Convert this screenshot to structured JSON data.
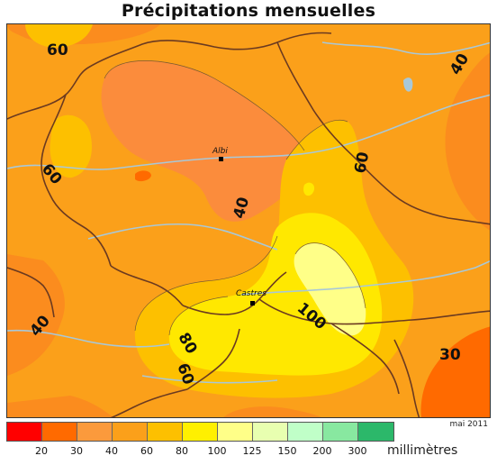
{
  "title": "Précipitations mensuelles",
  "date": "mai 2011",
  "unit": "millimètres",
  "legend": {
    "colors": [
      "#ff0000",
      "#ff6a00",
      "#fb9a3c",
      "#fba01a",
      "#fdc000",
      "#fff000",
      "#ffff88",
      "#e8ffb0",
      "#c0ffc8",
      "#88e8a0",
      "#2cb86a"
    ],
    "ticks": [
      "20",
      "30",
      "40",
      "60",
      "80",
      "100",
      "125",
      "150",
      "200",
      "300"
    ]
  },
  "cities": [
    {
      "name": "Albi"
    },
    {
      "name": "Castres"
    }
  ],
  "contour_labels": [
    "60",
    "40",
    "60",
    "60",
    "40",
    "40",
    "100",
    "80",
    "60",
    "30"
  ]
}
